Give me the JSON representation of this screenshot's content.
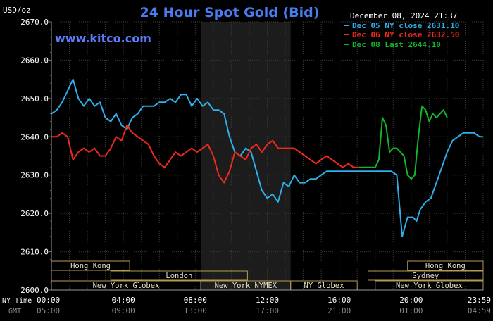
{
  "chart_data": {
    "type": "line",
    "title": "24 Hour Spot Gold (Bid)",
    "unit_label": "USD/oz",
    "watermark": "www.kitco.com",
    "timestamp": "December 08, 2024 21:37",
    "ylim": [
      2600,
      2670
    ],
    "yticks": [
      {
        "value": 2670,
        "label": "2670.0"
      },
      {
        "value": 2660,
        "label": "2660.0"
      },
      {
        "value": 2650,
        "label": "2650.0"
      },
      {
        "value": 2640,
        "label": "2640.0"
      },
      {
        "value": 2630,
        "label": "2630.0"
      },
      {
        "value": 2620,
        "label": "2620.0"
      },
      {
        "value": 2610,
        "label": "2610.0"
      },
      {
        "value": 2600,
        "label": "2600.0"
      }
    ],
    "xlim": [
      0,
      24
    ],
    "xticks": [
      {
        "x": 0,
        "ny": "00:00",
        "gmt": "05:00"
      },
      {
        "x": 4,
        "ny": "04:00",
        "gmt": "09:00"
      },
      {
        "x": 8,
        "ny": "08:00",
        "gmt": "13:00"
      },
      {
        "x": 12,
        "ny": "12:00",
        "gmt": "17:00"
      },
      {
        "x": 16,
        "ny": "16:00",
        "gmt": "21:00"
      },
      {
        "x": 20,
        "ny": "20:00",
        "gmt": "01:00"
      },
      {
        "x": 24,
        "ny": "23:59",
        "gmt": "04:59"
      }
    ],
    "xaxis_row_labels": {
      "ny": "NY Time",
      "gmt": "GMT"
    },
    "shaded_region": [
      8.3,
      13.3
    ],
    "grid": true,
    "legend_position": "top-right",
    "series": [
      {
        "name": "Dec 05 NY close 2631.10",
        "color": "#2fb0ea",
        "x": [
          0,
          0.3,
          0.6,
          0.9,
          1.2,
          1.5,
          1.8,
          2.1,
          2.4,
          2.7,
          3.0,
          3.3,
          3.6,
          3.9,
          4.2,
          4.5,
          4.8,
          5.1,
          5.4,
          5.7,
          6.0,
          6.3,
          6.6,
          6.9,
          7.2,
          7.5,
          7.8,
          8.1,
          8.4,
          8.7,
          9.0,
          9.3,
          9.6,
          9.9,
          10.2,
          10.5,
          10.8,
          11.1,
          11.4,
          11.7,
          12.0,
          12.3,
          12.6,
          12.9,
          13.2,
          13.5,
          13.8,
          14.1,
          14.4,
          14.7,
          15.0,
          15.3,
          15.6,
          15.9,
          16.2,
          16.5,
          16.8,
          17.1,
          17.4,
          17.7,
          18.0,
          18.3,
          18.6,
          18.9,
          19.2,
          19.5,
          19.8,
          20.1,
          20.3,
          20.5,
          20.8,
          21.1,
          21.4,
          21.7,
          22.0,
          22.3,
          22.6,
          22.9,
          23.2,
          23.5,
          23.8,
          23.99
        ],
        "values": [
          2646,
          2647,
          2649,
          2652,
          2655,
          2650,
          2648,
          2650,
          2648,
          2649,
          2645,
          2644,
          2646,
          2643,
          2642,
          2645,
          2646,
          2648,
          2648,
          2648,
          2649,
          2649,
          2650,
          2649,
          2651,
          2651,
          2648,
          2650,
          2648,
          2649,
          2647,
          2647,
          2646,
          2640,
          2636,
          2635,
          2637,
          2636,
          2631,
          2626,
          2624,
          2625,
          2623,
          2628,
          2627,
          2630,
          2628,
          2628,
          2629,
          2629,
          2630,
          2631,
          2631,
          2631,
          2631,
          2631,
          2631,
          2631,
          2631,
          2631,
          2631,
          2631,
          2631,
          2631,
          2630,
          2614,
          2619,
          2619,
          2618,
          2621,
          2623,
          2624,
          2628,
          2632,
          2636,
          2639,
          2640,
          2641,
          2641,
          2641,
          2640,
          2640
        ]
      },
      {
        "name": "Dec 06 NY close 2632.50",
        "color": "#ee2a1d",
        "x": [
          0,
          0.3,
          0.6,
          0.9,
          1.2,
          1.5,
          1.8,
          2.1,
          2.4,
          2.7,
          3.0,
          3.3,
          3.6,
          3.9,
          4.2,
          4.5,
          4.8,
          5.1,
          5.4,
          5.7,
          6.0,
          6.3,
          6.6,
          6.9,
          7.2,
          7.5,
          7.8,
          8.1,
          8.4,
          8.7,
          9.0,
          9.3,
          9.6,
          9.9,
          10.2,
          10.5,
          10.8,
          11.1,
          11.4,
          11.7,
          12.0,
          12.3,
          12.6,
          12.9,
          13.2,
          13.5,
          13.8,
          14.1,
          14.4,
          14.7,
          15.0,
          15.3,
          15.6,
          15.9,
          16.2,
          16.5,
          16.8,
          17.1
        ],
        "values": [
          2640,
          2640,
          2641,
          2640,
          2634,
          2636,
          2637,
          2636,
          2637,
          2635,
          2635,
          2637,
          2640,
          2639,
          2643,
          2641,
          2640,
          2639,
          2638,
          2635,
          2633,
          2632,
          2634,
          2636,
          2635,
          2636,
          2637,
          2636,
          2637,
          2638,
          2635,
          2630,
          2628,
          2631,
          2636,
          2635,
          2634,
          2637,
          2638,
          2636,
          2638,
          2639,
          2637,
          2637,
          2637,
          2637,
          2636,
          2635,
          2634,
          2633,
          2634,
          2635,
          2634,
          2633,
          2632,
          2633,
          2632,
          2632
        ]
      },
      {
        "name": "Dec 08 Last 2644.10",
        "color": "#12b72a",
        "x": [
          17.1,
          17.6,
          18.0,
          18.2,
          18.4,
          18.6,
          18.8,
          19.0,
          19.2,
          19.4,
          19.6,
          19.8,
          20.0,
          20.2,
          20.4,
          20.6,
          20.8,
          21.0,
          21.2,
          21.4,
          21.6,
          21.8,
          22.0
        ],
        "values": [
          2632,
          2632,
          2632,
          2634,
          2645,
          2643,
          2636,
          2637,
          2637,
          2636,
          2635,
          2630,
          2629,
          2630,
          2640,
          2648,
          2647,
          2644,
          2646,
          2645,
          2646,
          2647,
          2645
        ]
      }
    ],
    "markets": [
      {
        "name": "Hong Kong",
        "row": 0,
        "start": 0,
        "end": 4.35
      },
      {
        "name": "Hong Kong",
        "row": 0,
        "start": 19.8,
        "end": 24
      },
      {
        "name": "London",
        "row": 1,
        "start": 3.3,
        "end": 10.9
      },
      {
        "name": "Sydney",
        "row": 1,
        "start": 17.6,
        "end": 24
      },
      {
        "name": "New York Globex",
        "row": 2,
        "start": 0,
        "end": 8.3
      },
      {
        "name": "New York NYMEX",
        "row": 2,
        "start": 8.3,
        "end": 13.3
      },
      {
        "name": "NY Globex",
        "row": 2,
        "start": 13.3,
        "end": 17.0
      },
      {
        "name": "New York Globex",
        "row": 2,
        "start": 18.0,
        "end": 24
      }
    ]
  }
}
